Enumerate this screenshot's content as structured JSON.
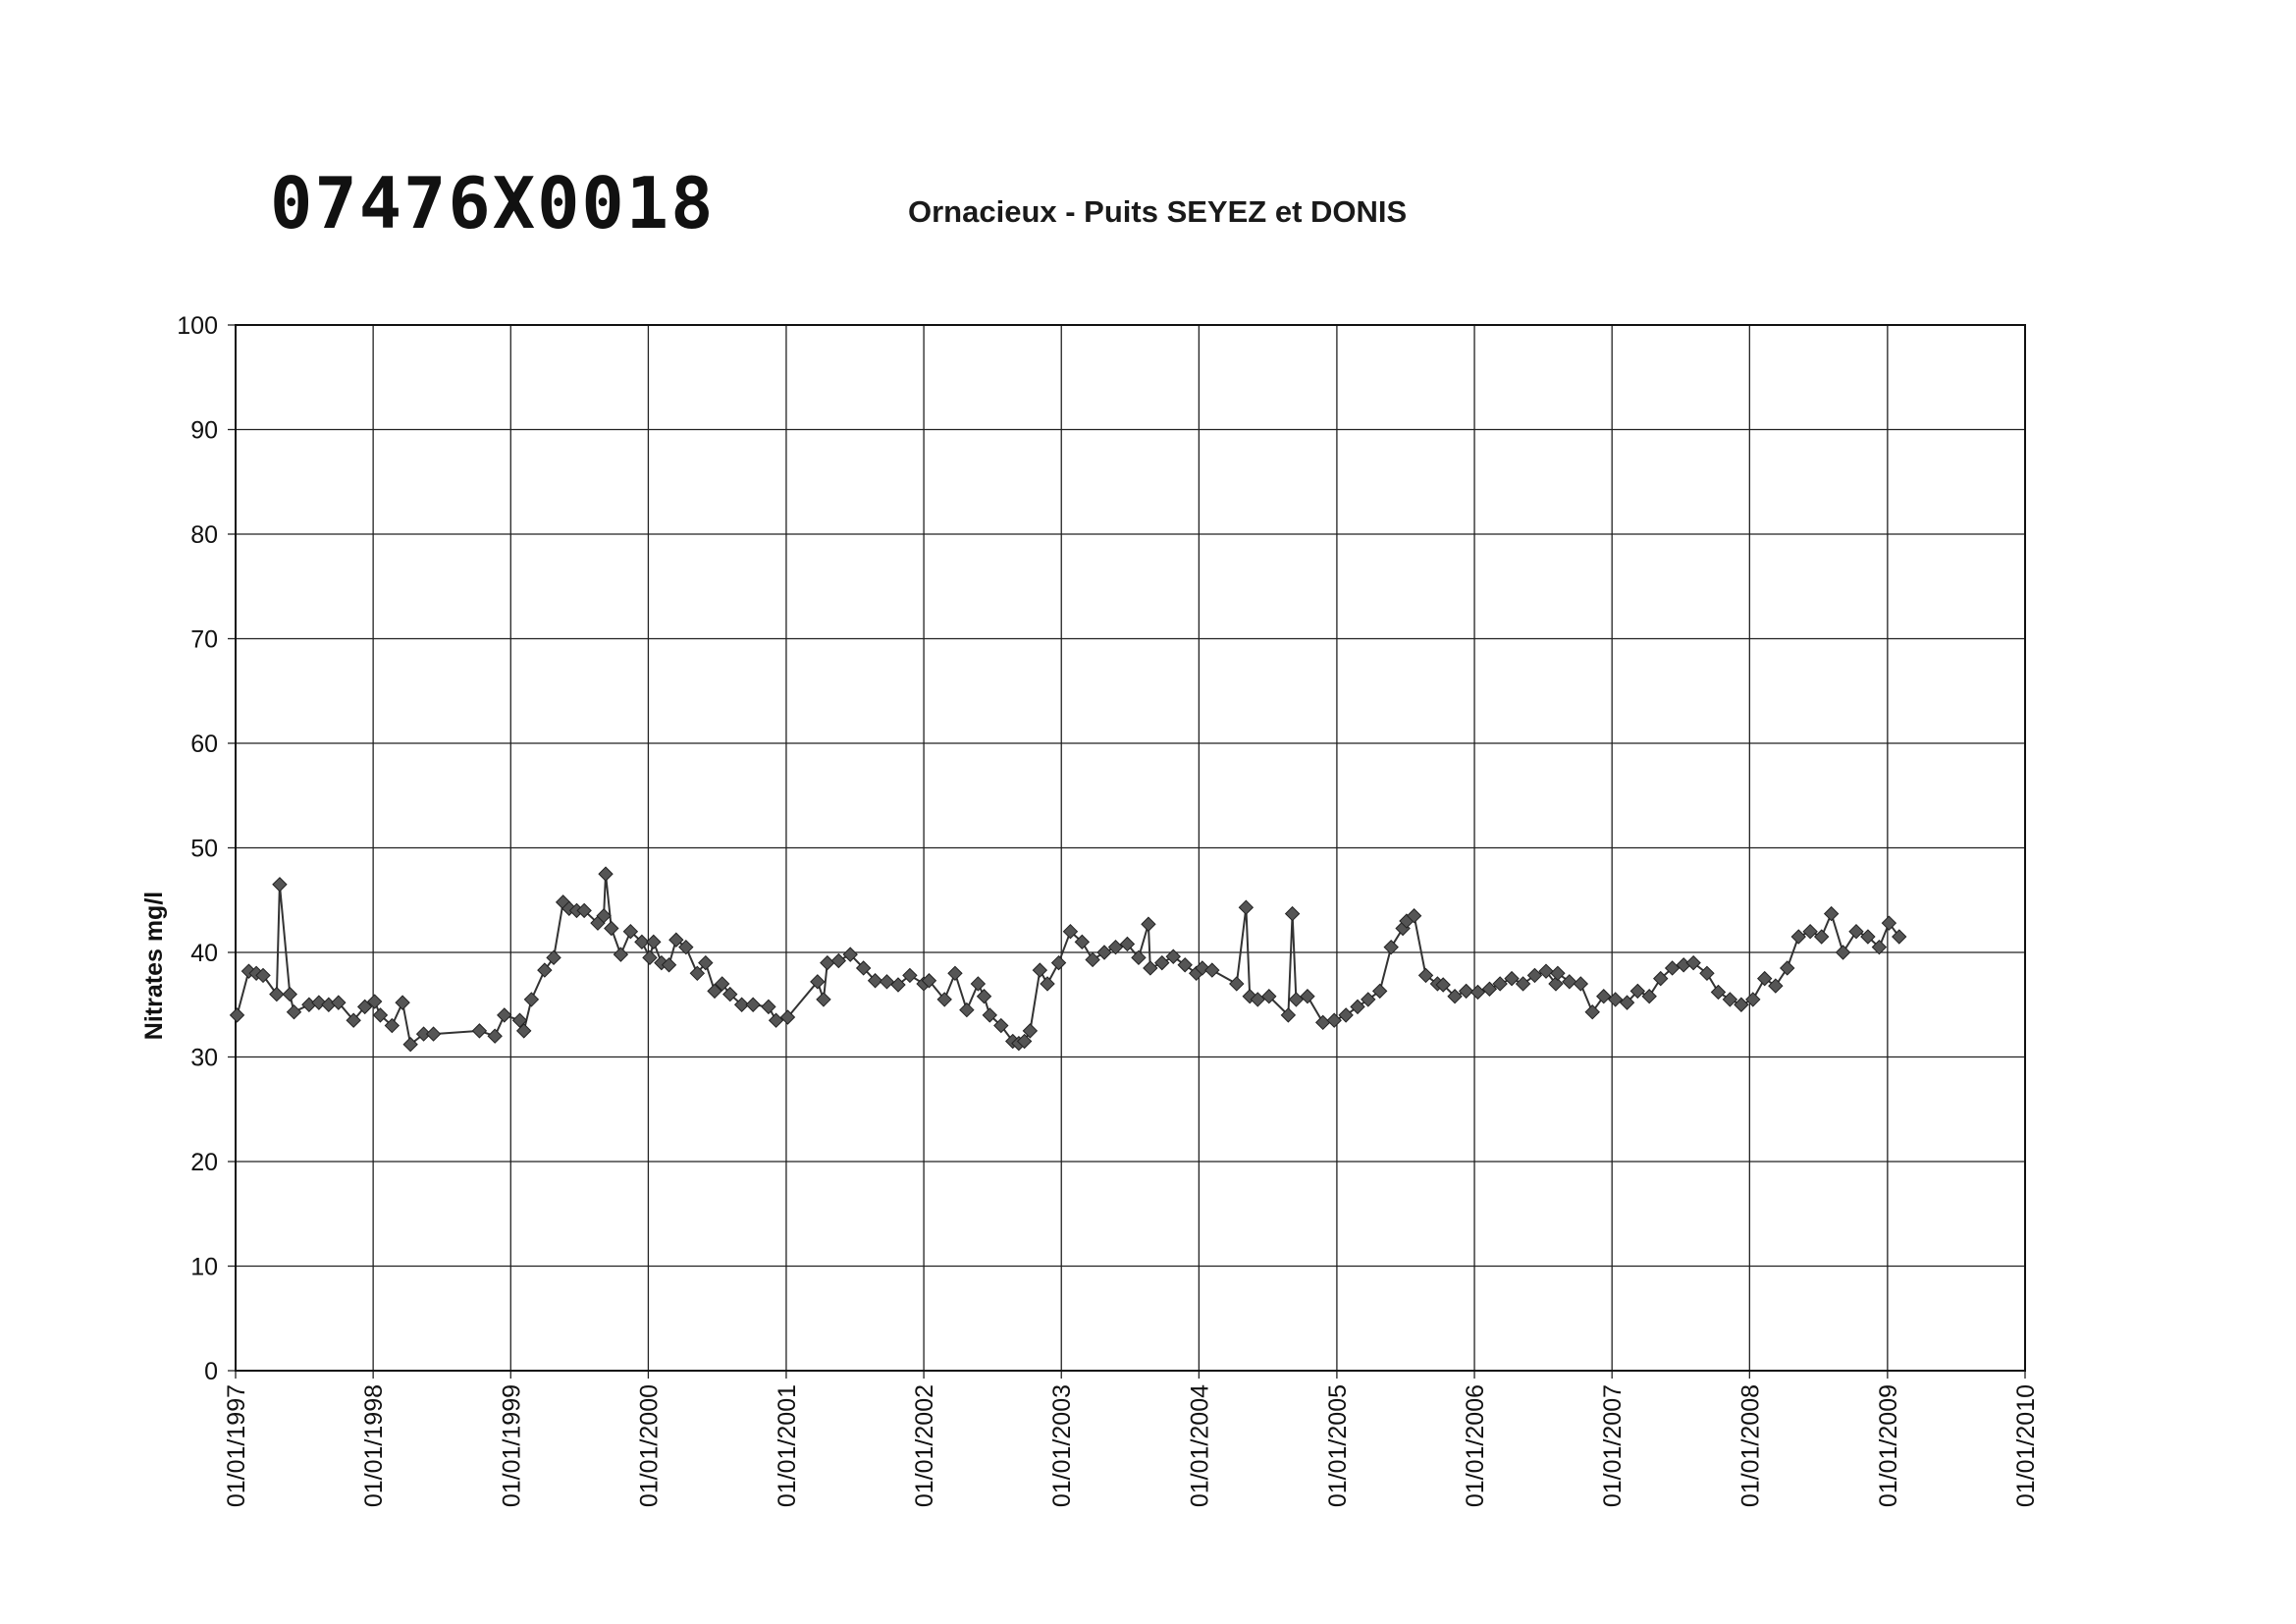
{
  "header": {
    "code": "07476X0018"
  },
  "chart_data": {
    "type": "line",
    "title": "Ornacieux - Puits SEYEZ et DONIS",
    "ylabel": "Nitrates mg/l",
    "xlabel": "",
    "ylim": [
      0,
      100
    ],
    "yticks": [
      0,
      10,
      20,
      30,
      40,
      50,
      60,
      70,
      80,
      90,
      100
    ],
    "xlim": [
      "1997-01-01",
      "2010-01-01"
    ],
    "xticks": [
      "01/01/1997",
      "01/01/1998",
      "01/01/1999",
      "01/01/2000",
      "01/01/2001",
      "01/01/2002",
      "01/01/2003",
      "01/01/2004",
      "01/01/2005",
      "01/01/2006",
      "01/01/2007",
      "01/01/2008",
      "01/01/2009",
      "01/01/2010"
    ],
    "grid": true,
    "marker": "diamond",
    "color": "#555555",
    "series": [
      {
        "points": [
          [
            "1997-01-05",
            34.0
          ],
          [
            "1997-02-05",
            38.2
          ],
          [
            "1997-02-25",
            38.0
          ],
          [
            "1997-03-15",
            37.8
          ],
          [
            "1997-04-20",
            36.0
          ],
          [
            "1997-04-28",
            46.5
          ],
          [
            "1997-05-25",
            36.0
          ],
          [
            "1997-06-05",
            34.3
          ],
          [
            "1997-07-15",
            35.0
          ],
          [
            "1997-08-10",
            35.2
          ],
          [
            "1997-09-05",
            35.0
          ],
          [
            "1997-10-01",
            35.2
          ],
          [
            "1997-11-10",
            33.5
          ],
          [
            "1997-12-10",
            34.8
          ],
          [
            "1998-01-05",
            35.3
          ],
          [
            "1998-01-20",
            34.0
          ],
          [
            "1998-02-20",
            33.0
          ],
          [
            "1998-03-20",
            35.2
          ],
          [
            "1998-04-10",
            31.2
          ],
          [
            "1998-05-15",
            32.2
          ],
          [
            "1998-06-10",
            32.2
          ],
          [
            "1998-10-10",
            32.5
          ],
          [
            "1998-11-20",
            32.0
          ],
          [
            "1998-12-15",
            34.0
          ],
          [
            "1999-01-25",
            33.5
          ],
          [
            "1999-02-05",
            32.5
          ],
          [
            "1999-02-25",
            35.5
          ],
          [
            "1999-04-01",
            38.3
          ],
          [
            "1999-04-25",
            39.5
          ],
          [
            "1999-05-20",
            44.8
          ],
          [
            "1999-06-05",
            44.2
          ],
          [
            "1999-06-25",
            44.0
          ],
          [
            "1999-07-15",
            44.0
          ],
          [
            "1999-08-20",
            42.8
          ],
          [
            "1999-09-05",
            43.5
          ],
          [
            "1999-09-10",
            47.5
          ],
          [
            "1999-09-25",
            42.3
          ],
          [
            "1999-10-20",
            39.8
          ],
          [
            "1999-11-15",
            42.0
          ],
          [
            "1999-12-15",
            41.0
          ],
          [
            "2000-01-05",
            39.5
          ],
          [
            "2000-01-15",
            41.0
          ],
          [
            "2000-02-05",
            39.0
          ],
          [
            "2000-02-25",
            38.8
          ],
          [
            "2000-03-15",
            41.2
          ],
          [
            "2000-04-10",
            40.5
          ],
          [
            "2000-05-10",
            38.0
          ],
          [
            "2000-06-01",
            39.0
          ],
          [
            "2000-06-25",
            36.3
          ],
          [
            "2000-07-15",
            37.0
          ],
          [
            "2000-08-05",
            36.0
          ],
          [
            "2000-09-05",
            35.0
          ],
          [
            "2000-10-05",
            35.0
          ],
          [
            "2000-11-15",
            34.8
          ],
          [
            "2000-12-05",
            33.5
          ],
          [
            "2001-01-05",
            33.8
          ],
          [
            "2001-03-25",
            37.2
          ],
          [
            "2001-04-10",
            35.5
          ],
          [
            "2001-04-20",
            39.0
          ],
          [
            "2001-05-20",
            39.2
          ],
          [
            "2001-06-20",
            39.8
          ],
          [
            "2001-07-25",
            38.5
          ],
          [
            "2001-08-25",
            37.3
          ],
          [
            "2001-09-25",
            37.2
          ],
          [
            "2001-10-25",
            36.9
          ],
          [
            "2001-11-25",
            37.8
          ],
          [
            "2002-01-01",
            37.0
          ],
          [
            "2002-01-15",
            37.3
          ],
          [
            "2002-02-25",
            35.5
          ],
          [
            "2002-03-25",
            38.0
          ],
          [
            "2002-04-25",
            34.5
          ],
          [
            "2002-05-25",
            37.0
          ],
          [
            "2002-06-10",
            35.8
          ],
          [
            "2002-06-25",
            34.0
          ],
          [
            "2002-07-25",
            33.0
          ],
          [
            "2002-08-25",
            31.5
          ],
          [
            "2002-09-10",
            31.3
          ],
          [
            "2002-09-25",
            31.5
          ],
          [
            "2002-10-10",
            32.5
          ],
          [
            "2002-11-05",
            38.3
          ],
          [
            "2002-11-25",
            37.0
          ],
          [
            "2002-12-25",
            39.0
          ],
          [
            "2003-01-25",
            42.0
          ],
          [
            "2003-02-25",
            41.0
          ],
          [
            "2003-03-25",
            39.3
          ],
          [
            "2003-04-25",
            40.0
          ],
          [
            "2003-05-25",
            40.5
          ],
          [
            "2003-06-25",
            40.8
          ],
          [
            "2003-07-25",
            39.5
          ],
          [
            "2003-08-20",
            42.7
          ],
          [
            "2003-08-25",
            38.5
          ],
          [
            "2003-09-25",
            39.0
          ],
          [
            "2003-10-25",
            39.6
          ],
          [
            "2003-11-25",
            38.8
          ],
          [
            "2003-12-25",
            38.0
          ],
          [
            "2004-01-10",
            38.5
          ],
          [
            "2004-02-05",
            38.3
          ],
          [
            "2004-04-10",
            37.0
          ],
          [
            "2004-05-05",
            44.3
          ],
          [
            "2004-05-15",
            35.8
          ],
          [
            "2004-06-05",
            35.5
          ],
          [
            "2004-07-05",
            35.8
          ],
          [
            "2004-08-25",
            34.0
          ],
          [
            "2004-09-05",
            43.7
          ],
          [
            "2004-09-15",
            35.5
          ],
          [
            "2004-10-15",
            35.8
          ],
          [
            "2004-11-25",
            33.3
          ],
          [
            "2004-12-25",
            33.5
          ],
          [
            "2005-01-25",
            34.0
          ],
          [
            "2005-02-25",
            34.8
          ],
          [
            "2005-03-25",
            35.5
          ],
          [
            "2005-04-25",
            36.3
          ],
          [
            "2005-05-25",
            40.5
          ],
          [
            "2005-06-25",
            42.3
          ],
          [
            "2005-07-05",
            43.0
          ],
          [
            "2005-07-25",
            43.5
          ],
          [
            "2005-08-25",
            37.8
          ],
          [
            "2005-09-25",
            37.0
          ],
          [
            "2005-10-10",
            36.9
          ],
          [
            "2005-11-10",
            35.8
          ],
          [
            "2005-12-10",
            36.3
          ],
          [
            "2006-01-10",
            36.2
          ],
          [
            "2006-02-10",
            36.5
          ],
          [
            "2006-03-10",
            37.0
          ],
          [
            "2006-04-10",
            37.5
          ],
          [
            "2006-05-10",
            37.0
          ],
          [
            "2006-06-10",
            37.8
          ],
          [
            "2006-07-10",
            38.2
          ],
          [
            "2006-08-05",
            37.0
          ],
          [
            "2006-08-10",
            38.0
          ],
          [
            "2006-09-10",
            37.2
          ],
          [
            "2006-10-10",
            37.0
          ],
          [
            "2006-11-10",
            34.3
          ],
          [
            "2006-12-10",
            35.8
          ],
          [
            "2007-01-10",
            35.5
          ],
          [
            "2007-02-10",
            35.2
          ],
          [
            "2007-03-10",
            36.3
          ],
          [
            "2007-04-10",
            35.8
          ],
          [
            "2007-05-10",
            37.5
          ],
          [
            "2007-06-10",
            38.5
          ],
          [
            "2007-07-10",
            38.8
          ],
          [
            "2007-08-05",
            39.0
          ],
          [
            "2007-09-10",
            38.0
          ],
          [
            "2007-10-10",
            36.2
          ],
          [
            "2007-11-10",
            35.5
          ],
          [
            "2007-12-10",
            35.0
          ],
          [
            "2008-01-10",
            35.5
          ],
          [
            "2008-02-10",
            37.5
          ],
          [
            "2008-03-10",
            36.8
          ],
          [
            "2008-04-10",
            38.5
          ],
          [
            "2008-05-10",
            41.5
          ],
          [
            "2008-06-10",
            42.0
          ],
          [
            "2008-07-10",
            41.5
          ],
          [
            "2008-08-05",
            43.7
          ],
          [
            "2008-09-05",
            40.0
          ],
          [
            "2008-10-10",
            42.0
          ],
          [
            "2008-11-10",
            41.5
          ],
          [
            "2008-12-10",
            40.5
          ],
          [
            "2009-01-05",
            42.8
          ],
          [
            "2009-02-01",
            41.5
          ]
        ]
      }
    ]
  }
}
